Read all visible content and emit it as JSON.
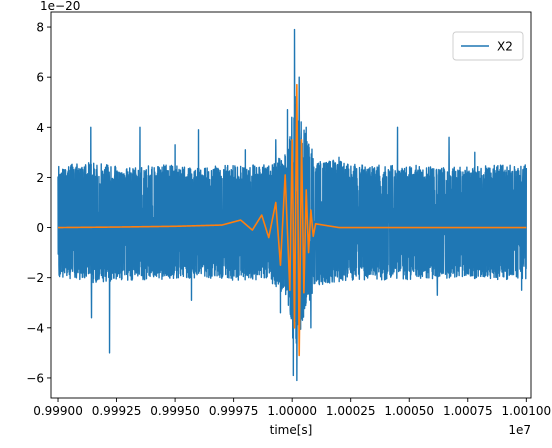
{
  "chart_data": {
    "type": "line",
    "title": "",
    "xlabel": "time[s]",
    "ylabel": "",
    "x_offset_label": "1e7",
    "y_offset_label": "1e−20",
    "xlim": [
      0.99897,
      1.00102
    ],
    "ylim": [
      -6.8,
      8.6
    ],
    "x_ticks": [
      0.999,
      0.99925,
      0.9995,
      0.99975,
      1.0,
      1.00025,
      1.0005,
      1.00075,
      1.001
    ],
    "x_tick_labels": [
      "0.99900",
      "0.99925",
      "0.99950",
      "0.99975",
      "1.00000",
      "1.00025",
      "1.00050",
      "1.00075",
      "1.00100"
    ],
    "y_ticks": [
      -6,
      -4,
      -2,
      0,
      2,
      4,
      6,
      8
    ],
    "y_tick_labels": [
      "−6",
      "−4",
      "−2",
      "0",
      "2",
      "4",
      "6",
      "8"
    ],
    "grid": false,
    "legend_position": "upper-right",
    "series": [
      {
        "name": "X2",
        "color": "#1f77b4",
        "description": "noisy strain data",
        "envelope": {
          "x": [
            0.999,
            0.99915,
            0.9993,
            0.99945,
            0.9996,
            0.99975,
            0.9999,
            0.99998,
            1.0,
            1.00002,
            1.00005,
            1.0001,
            1.0003,
            1.0005,
            1.0007,
            1.0009,
            1.001
          ],
          "typical_upper": [
            2.5,
            2.6,
            2.4,
            2.5,
            2.4,
            2.5,
            2.5,
            3.0,
            5.0,
            5.5,
            4.0,
            2.8,
            2.5,
            2.5,
            2.4,
            2.5,
            2.5
          ],
          "typical_lower": [
            -2.0,
            -2.2,
            -2.1,
            -2.1,
            -2.0,
            -2.1,
            -2.1,
            -2.8,
            -4.5,
            -5.0,
            -3.5,
            -2.3,
            -2.1,
            -2.1,
            -2.0,
            -2.1,
            -2.1
          ]
        },
        "peaks": [
          {
            "x": 0.99914,
            "y": 4.0
          },
          {
            "x": 0.999143,
            "y": -3.6
          },
          {
            "x": 0.99922,
            "y": -5.0
          },
          {
            "x": 0.99935,
            "y": 4.0
          },
          {
            "x": 0.9995,
            "y": 3.3
          },
          {
            "x": 0.99957,
            "y": -2.9
          },
          {
            "x": 0.9996,
            "y": 3.9
          },
          {
            "x": 0.9998,
            "y": 3.1
          },
          {
            "x": 0.99993,
            "y": 3.5
          },
          {
            "x": 0.99995,
            "y": -3.4
          },
          {
            "x": 0.99998,
            "y": 4.7
          },
          {
            "x": 1.00001,
            "y": 7.9
          },
          {
            "x": 1.000005,
            "y": -5.9
          },
          {
            "x": 1.00002,
            "y": -6.1
          },
          {
            "x": 1.00003,
            "y": 6.0
          },
          {
            "x": 1.00006,
            "y": 4.0
          },
          {
            "x": 1.00008,
            "y": -4.0
          },
          {
            "x": 1.0002,
            "y": 2.8
          },
          {
            "x": 1.00045,
            "y": 4.0
          },
          {
            "x": 1.00062,
            "y": -2.7
          },
          {
            "x": 1.00067,
            "y": 3.6
          },
          {
            "x": 1.00078,
            "y": 3.0
          },
          {
            "x": 1.00098,
            "y": -2.5
          }
        ]
      },
      {
        "name": "",
        "color": "#ff7f0e",
        "description": "chirp signal",
        "x": [
          0.999,
          0.99925,
          0.9995,
          0.9997,
          0.99978,
          0.99983,
          0.99987,
          0.9999,
          0.99993,
          0.99995,
          0.99997,
          0.99999,
          1.0,
          1.00001,
          1.00002,
          1.00003,
          1.00004,
          1.00005,
          1.00006,
          1.00007,
          1.00008,
          1.00009,
          1.0001,
          1.0002,
          1.001
        ],
        "y": [
          0.0,
          0.02,
          0.05,
          0.1,
          0.3,
          -0.1,
          0.5,
          -0.4,
          1.0,
          -1.5,
          2.1,
          -2.5,
          3.5,
          -4.0,
          5.7,
          -5.1,
          3.5,
          -2.6,
          1.5,
          -1.0,
          0.7,
          -0.35,
          0.15,
          0.0,
          0.0
        ]
      }
    ]
  }
}
